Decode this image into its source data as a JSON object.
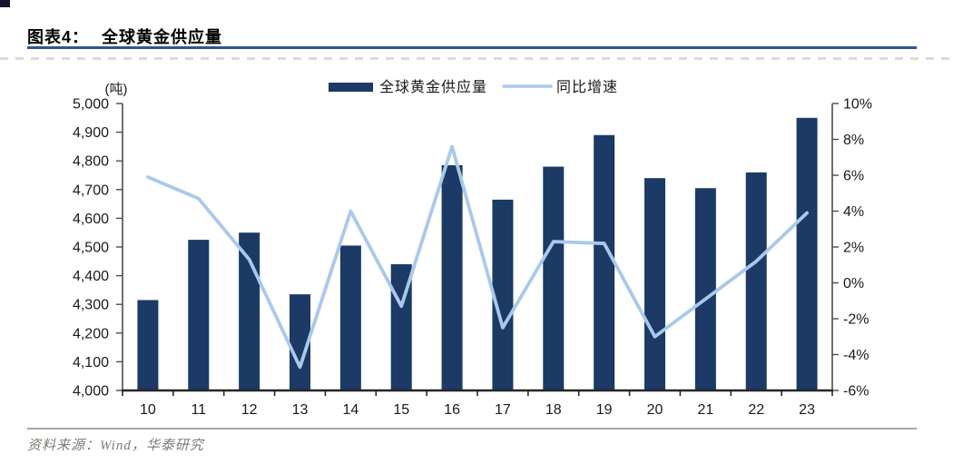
{
  "header": {
    "figure_label": "图表4：",
    "title": "全球黄金供应量"
  },
  "legend": {
    "bar_label": "全球黄金供应量",
    "line_label": "同比增速"
  },
  "footer": {
    "source": "资料来源：Wind，华泰研究"
  },
  "colors": {
    "bar": "#1B3A66",
    "line": "#A9C9EC",
    "title_underline": "#2F5496",
    "axis_line": "#4d4d4d",
    "x_axis_line": "#262626",
    "tick_text": "#1a1a1a"
  },
  "chart_data": {
    "type": "bar",
    "title": "全球黄金供应量",
    "legend_position": "top-center",
    "grid": false,
    "categories": [
      "10",
      "11",
      "12",
      "13",
      "14",
      "15",
      "16",
      "17",
      "18",
      "19",
      "20",
      "21",
      "22",
      "23"
    ],
    "series": [
      {
        "name": "全球黄金供应量",
        "type": "bar",
        "axis": "left",
        "unit": "吨",
        "values": [
          4315,
          4525,
          4550,
          4335,
          4505,
          4440,
          4785,
          4665,
          4780,
          4890,
          4740,
          4705,
          4760,
          4950
        ]
      },
      {
        "name": "同比增速",
        "type": "line",
        "axis": "right",
        "unit": "%",
        "values": [
          5.9,
          4.7,
          1.3,
          -4.7,
          4.0,
          -1.3,
          7.6,
          -2.5,
          2.3,
          2.2,
          -3.0,
          -0.9,
          1.2,
          3.9
        ]
      }
    ],
    "left_axis": {
      "label": "(吨)",
      "min": 4000,
      "max": 5000,
      "step": 100,
      "tick_labels": [
        "4,000",
        "4,100",
        "4,200",
        "4,300",
        "4,400",
        "4,500",
        "4,600",
        "4,700",
        "4,800",
        "4,900",
        "5,000"
      ]
    },
    "right_axis": {
      "min": -6,
      "max": 10,
      "step": 2,
      "tick_labels": [
        "-6%",
        "-4%",
        "-2%",
        "0%",
        "2%",
        "4%",
        "6%",
        "8%",
        "10%"
      ]
    }
  }
}
